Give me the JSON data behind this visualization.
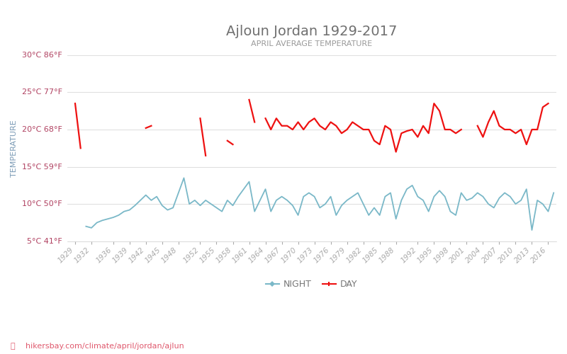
{
  "title": "Ajloun Jordan 1929-2017",
  "subtitle": "APRIL AVERAGE TEMPERATURE",
  "ylabel": "TEMPERATURE",
  "footer": "hikersbay.com/climate/april/jordan/ajlun",
  "title_color": "#707070",
  "subtitle_color": "#999999",
  "ylabel_color": "#7a9ab5",
  "footer_color": "#e05a6e",
  "background_color": "#ffffff",
  "grid_color": "#e0e0e0",
  "day_color": "#ee1111",
  "night_color": "#7ab8c8",
  "ylim": [
    5,
    30
  ],
  "yticks_c": [
    5,
    10,
    15,
    20,
    25,
    30
  ],
  "ytick_labels": [
    "5°C 41°F",
    "10°C 50°F",
    "15°C 59°F",
    "20°C 68°F",
    "25°C 77°F",
    "30°C 86°F"
  ],
  "years": [
    1929,
    1930,
    1931,
    1932,
    1933,
    1934,
    1935,
    1936,
    1937,
    1938,
    1939,
    1940,
    1941,
    1942,
    1943,
    1944,
    1945,
    1946,
    1947,
    1948,
    1949,
    1950,
    1951,
    1952,
    1953,
    1954,
    1955,
    1956,
    1957,
    1958,
    1959,
    1960,
    1961,
    1962,
    1963,
    1964,
    1965,
    1966,
    1967,
    1968,
    1969,
    1970,
    1971,
    1972,
    1973,
    1974,
    1975,
    1976,
    1977,
    1978,
    1979,
    1980,
    1981,
    1982,
    1983,
    1984,
    1985,
    1986,
    1987,
    1988,
    1989,
    1990,
    1991,
    1992,
    1993,
    1994,
    1995,
    1996,
    1997,
    1998,
    1999,
    2000,
    2001,
    2002,
    2003,
    2004,
    2005,
    2006,
    2007,
    2008,
    2009,
    2010,
    2011,
    2012,
    2013,
    2014,
    2015,
    2016,
    2017
  ],
  "day_temps": [
    23.5,
    17.5,
    null,
    null,
    null,
    null,
    null,
    null,
    null,
    null,
    null,
    null,
    null,
    20.2,
    20.5,
    null,
    null,
    null,
    null,
    null,
    null,
    null,
    null,
    21.5,
    16.5,
    null,
    null,
    null,
    18.5,
    18.0,
    null,
    null,
    24.0,
    21.0,
    null,
    21.5,
    20.0,
    21.5,
    20.5,
    20.5,
    20.0,
    21.0,
    20.0,
    21.0,
    21.5,
    20.5,
    20.0,
    21.0,
    20.5,
    19.5,
    20.0,
    21.0,
    20.5,
    20.0,
    20.0,
    18.5,
    18.0,
    20.5,
    20.0,
    17.0,
    19.5,
    19.8,
    20.0,
    19.0,
    20.5,
    19.5,
    23.5,
    22.5,
    20.0,
    20.0,
    19.5,
    20.0,
    null,
    null,
    20.5,
    19.0,
    21.0,
    22.5,
    20.5,
    20.0,
    20.0,
    19.5,
    20.0,
    18.0,
    20.0,
    20.0,
    23.0,
    23.5
  ],
  "night_temps": [
    null,
    null,
    7.0,
    6.8,
    7.5,
    7.8,
    8.0,
    8.2,
    8.5,
    9.0,
    9.2,
    9.8,
    10.5,
    11.2,
    10.5,
    11.0,
    9.8,
    9.2,
    9.5,
    11.5,
    13.5,
    10.0,
    10.5,
    9.8,
    10.5,
    10.0,
    9.5,
    9.0,
    10.5,
    9.8,
    11.0,
    12.0,
    13.0,
    9.0,
    10.5,
    12.0,
    9.0,
    10.5,
    11.0,
    10.5,
    9.8,
    8.5,
    11.0,
    11.5,
    11.0,
    9.5,
    10.0,
    11.0,
    8.5,
    9.8,
    10.5,
    11.0,
    11.5,
    10.0,
    8.5,
    9.5,
    8.5,
    11.0,
    11.5,
    8.0,
    10.5,
    12.0,
    12.5,
    11.0,
    10.5,
    9.0,
    11.0,
    11.8,
    11.0,
    9.0,
    8.5,
    11.5,
    10.5,
    10.8,
    11.5,
    11.0,
    10.0,
    9.5,
    10.8,
    11.5,
    11.0,
    10.0,
    10.5,
    12.0,
    6.5,
    10.5,
    10.0,
    9.0,
    11.5
  ],
  "xtick_years": [
    1929,
    1932,
    1936,
    1939,
    1942,
    1945,
    1948,
    1952,
    1955,
    1958,
    1961,
    1964,
    1967,
    1970,
    1973,
    1976,
    1979,
    1982,
    1985,
    1988,
    1992,
    1995,
    1998,
    2001,
    2004,
    2007,
    2010,
    2013,
    2016
  ],
  "legend_night_label": "NIGHT",
  "legend_day_label": "DAY"
}
